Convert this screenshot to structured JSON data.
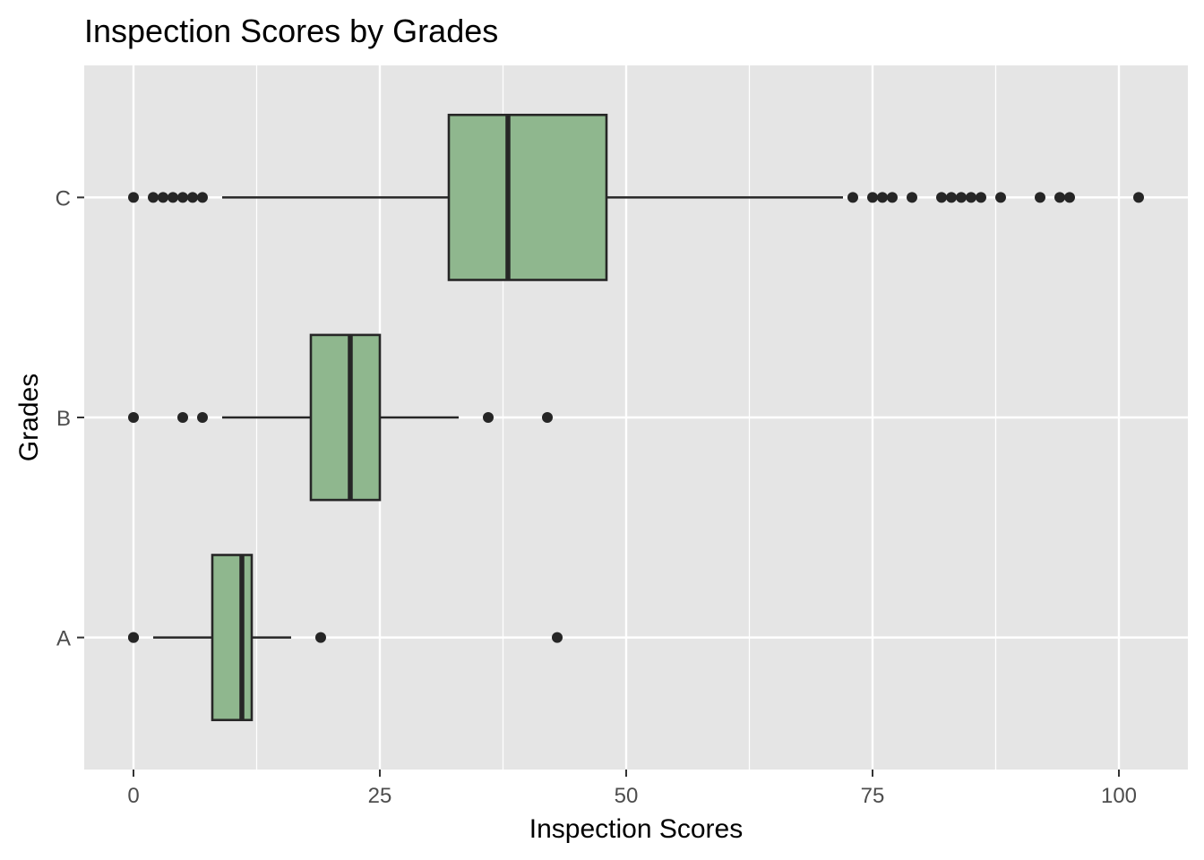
{
  "chart_data": {
    "type": "boxplot",
    "title": "Inspection Scores by Grades",
    "xlabel": "Inspection Scores",
    "ylabel": "Grades",
    "orientation": "horizontal",
    "xlim": [
      -5,
      107
    ],
    "x_ticks": [
      0,
      25,
      50,
      75,
      100
    ],
    "categories": [
      "A",
      "B",
      "C"
    ],
    "grid": true,
    "colors": {
      "panel_background": "#e5e5e5",
      "grid_line": "#ffffff",
      "box_fill": "#8fb78e",
      "box_stroke": "#262626",
      "outlier": "#262626",
      "tick_text": "#4d4d4d"
    },
    "boxes": [
      {
        "category": "A",
        "q1": 8,
        "median": 11,
        "q3": 12,
        "whisker_low": 2,
        "whisker_high": 16,
        "outliers": [
          0,
          0,
          19,
          43
        ]
      },
      {
        "category": "B",
        "q1": 18,
        "median": 22,
        "q3": 25,
        "whisker_low": 9,
        "whisker_high": 33,
        "outliers": [
          0,
          5,
          7,
          36,
          42
        ]
      },
      {
        "category": "C",
        "q1": 32,
        "median": 38,
        "q3": 48,
        "whisker_low": 9,
        "whisker_high": 72,
        "outliers": [
          0,
          2,
          3,
          4,
          5,
          6,
          7,
          73,
          75,
          76,
          77,
          79,
          82,
          83,
          84,
          85,
          86,
          88,
          92,
          94,
          95,
          102
        ]
      }
    ]
  }
}
